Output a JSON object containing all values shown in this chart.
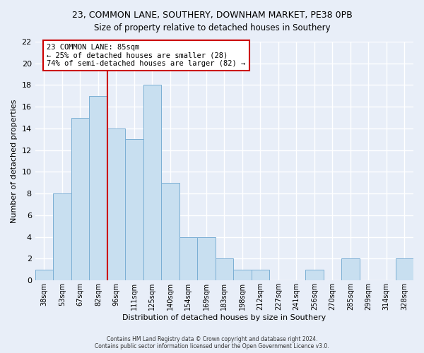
{
  "title": "23, COMMON LANE, SOUTHERY, DOWNHAM MARKET, PE38 0PB",
  "subtitle": "Size of property relative to detached houses in Southery",
  "xlabel": "Distribution of detached houses by size in Southery",
  "ylabel": "Number of detached properties",
  "footer_line1": "Contains HM Land Registry data © Crown copyright and database right 2024.",
  "footer_line2": "Contains public sector information licensed under the Open Government Licence v3.0.",
  "bar_labels": [
    "38sqm",
    "53sqm",
    "67sqm",
    "82sqm",
    "96sqm",
    "111sqm",
    "125sqm",
    "140sqm",
    "154sqm",
    "169sqm",
    "183sqm",
    "198sqm",
    "212sqm",
    "227sqm",
    "241sqm",
    "256sqm",
    "270sqm",
    "285sqm",
    "299sqm",
    "314sqm",
    "328sqm"
  ],
  "bar_heights": [
    1,
    8,
    15,
    17,
    14,
    13,
    18,
    9,
    4,
    4,
    2,
    1,
    1,
    0,
    0,
    1,
    0,
    2,
    0,
    0,
    2
  ],
  "bar_color": "#c8dff0",
  "bar_edge_color": "#7bafd4",
  "vline_x": 3.5,
  "vline_color": "#cc0000",
  "annotation_title": "23 COMMON LANE: 85sqm",
  "annotation_line1": "← 25% of detached houses are smaller (28)",
  "annotation_line2": "74% of semi-detached houses are larger (82) →",
  "annotation_box_color": "#ffffff",
  "annotation_box_edge": "#cc0000",
  "ylim": [
    0,
    22
  ],
  "yticks": [
    0,
    2,
    4,
    6,
    8,
    10,
    12,
    14,
    16,
    18,
    20,
    22
  ],
  "background_color": "#e8eef8"
}
